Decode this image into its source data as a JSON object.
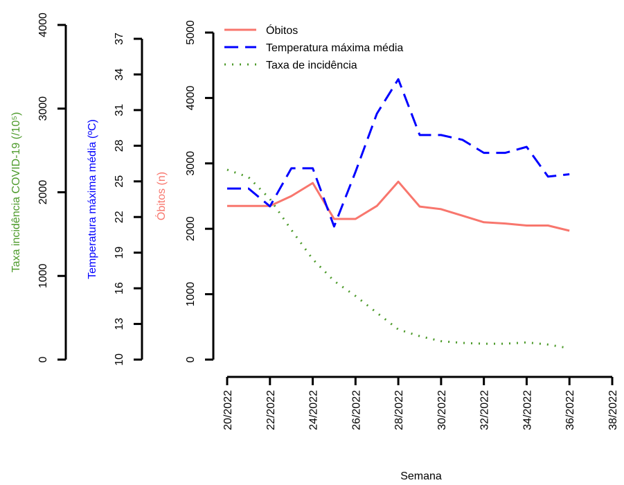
{
  "chart_data": {
    "type": "line",
    "xlabel": "Semana",
    "x_ticks": [
      "20/2022",
      "22/2022",
      "24/2022",
      "26/2022",
      "28/2022",
      "30/2022",
      "32/2022",
      "34/2022",
      "36/2022",
      "38/2022"
    ],
    "x_week_range": [
      20,
      38
    ],
    "weeks": [
      20,
      21,
      22,
      23,
      24,
      25,
      26,
      27,
      28,
      29,
      30,
      31,
      32,
      33,
      34,
      35,
      36
    ],
    "axes": {
      "obitos": {
        "label": "Óbitos (n)",
        "color": "#f8766d",
        "range": [
          0,
          5000
        ],
        "ticks": [
          0,
          1000,
          2000,
          3000,
          4000,
          5000
        ]
      },
      "temperatura": {
        "label": "Temperatura máxima média (ºC)",
        "color": "#0000ff",
        "range": [
          10,
          37
        ],
        "ticks": [
          10,
          13,
          16,
          19,
          22,
          25,
          28,
          31,
          34,
          37
        ]
      },
      "incidencia": {
        "label": "Taxa incidência COVID-19 (/10⁵)",
        "color": "#4c9a2a",
        "range": [
          0,
          4000
        ],
        "ticks": [
          0,
          1000,
          2000,
          3000,
          4000
        ]
      }
    },
    "series": [
      {
        "name": "Óbitos",
        "axis": "obitos",
        "color": "#f8766d",
        "dash": "none",
        "values": [
          2350,
          2350,
          2350,
          2500,
          2700,
          2150,
          2150,
          2350,
          2720,
          2340,
          2300,
          2200,
          2100,
          2080,
          2050,
          2050,
          1970
        ]
      },
      {
        "name": "Temperatura máxima média",
        "axis": "temperatura",
        "color": "#0000ff",
        "dash": "20,10",
        "values": [
          24.4,
          24.4,
          22.9,
          26.1,
          26.1,
          21.2,
          25.8,
          30.7,
          33.6,
          28.9,
          28.9,
          28.5,
          27.4,
          27.4,
          27.9,
          25.4,
          25.6
        ]
      },
      {
        "name": "Taxa de incidência",
        "axis": "incidencia",
        "color": "#4c9a2a",
        "dash": "2,9",
        "values": [
          2270,
          2180,
          1920,
          1550,
          1200,
          940,
          760,
          560,
          360,
          280,
          220,
          200,
          190,
          190,
          205,
          180,
          135
        ]
      }
    ],
    "legend_position": "top-left",
    "grid": false
  }
}
